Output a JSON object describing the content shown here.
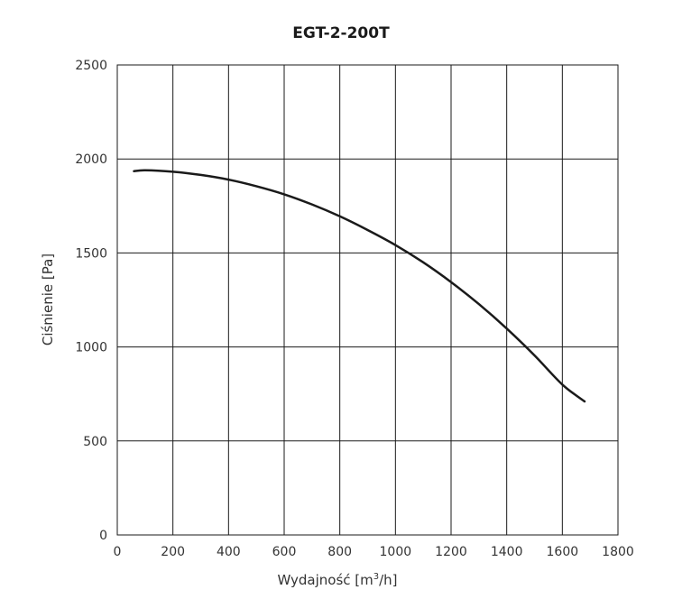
{
  "chart_data": {
    "type": "line",
    "title": "EGT-2-200T",
    "xlabel_main": "Wydajność [m",
    "xlabel_sup": "3",
    "xlabel_tail": "/h]",
    "ylabel": "Ciśnienie [Pa]",
    "xlim": [
      0,
      1800
    ],
    "ylim": [
      0,
      2500
    ],
    "x_ticks": [
      "0",
      "200",
      "400",
      "600",
      "800",
      "1000",
      "1200",
      "1400",
      "1600",
      "1800"
    ],
    "y_ticks": [
      "0",
      "500",
      "1000",
      "1500",
      "2000",
      "2500"
    ],
    "grid": true,
    "series": [
      {
        "color": "#1a1a1a",
        "x": [
          60,
          100,
          200,
          300,
          400,
          500,
          600,
          700,
          800,
          900,
          1000,
          1100,
          1200,
          1300,
          1400,
          1500,
          1600,
          1680
        ],
        "y": [
          1935,
          1940,
          1932,
          1915,
          1890,
          1855,
          1812,
          1758,
          1695,
          1622,
          1542,
          1450,
          1345,
          1228,
          1098,
          955,
          800,
          710
        ]
      }
    ]
  }
}
